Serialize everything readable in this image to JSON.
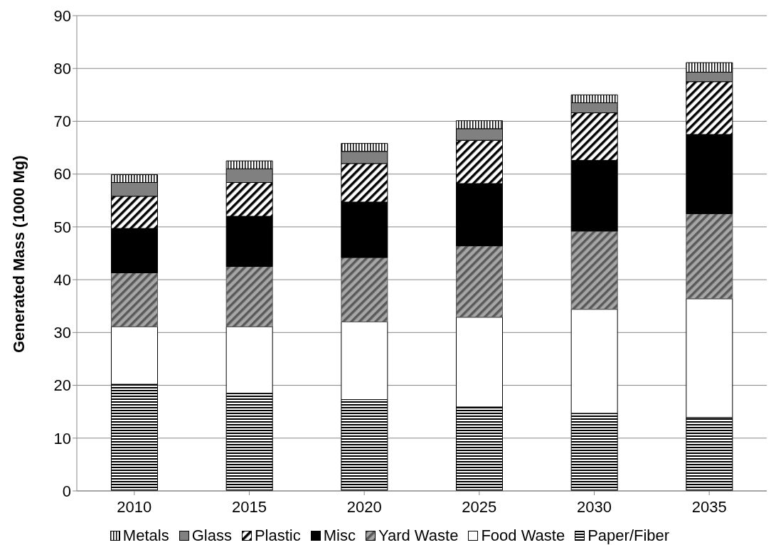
{
  "chart_data": {
    "type": "bar",
    "stacked": true,
    "ylabel": "Generated Mass (1000 Mg)",
    "categories": [
      "2010",
      "2015",
      "2020",
      "2025",
      "2030",
      "2035"
    ],
    "series": [
      {
        "name": "Paper/Fiber",
        "color": "#000000",
        "values": [
          20.2,
          18.5,
          17.3,
          15.9,
          14.7,
          13.9
        ]
      },
      {
        "name": "Food Waste",
        "color": "#ffffff",
        "values": [
          10.9,
          12.6,
          14.7,
          17.0,
          19.7,
          22.5
        ]
      },
      {
        "name": "Yard Waste",
        "color": "#595959",
        "values": [
          10.2,
          11.4,
          12.2,
          13.5,
          14.8,
          16.1
        ]
      },
      {
        "name": "Misc",
        "color": "#000000",
        "values": [
          8.4,
          9.5,
          10.5,
          11.8,
          13.4,
          15.0
        ]
      },
      {
        "name": "Plastic",
        "color": "#000000",
        "values": [
          6.1,
          6.4,
          7.3,
          8.2,
          9.0,
          10.0
        ]
      },
      {
        "name": "Glass",
        "color": "#808080",
        "values": [
          2.6,
          2.6,
          2.3,
          2.2,
          1.9,
          1.8
        ]
      },
      {
        "name": "Metals",
        "color": "#000000",
        "values": [
          1.5,
          1.5,
          1.5,
          1.5,
          1.5,
          1.8
        ]
      }
    ],
    "ylim": [
      0,
      90
    ],
    "yticks": [
      0,
      10,
      20,
      30,
      40,
      50,
      60,
      70,
      80,
      90
    ],
    "grid": "y",
    "legend": "bottom"
  }
}
